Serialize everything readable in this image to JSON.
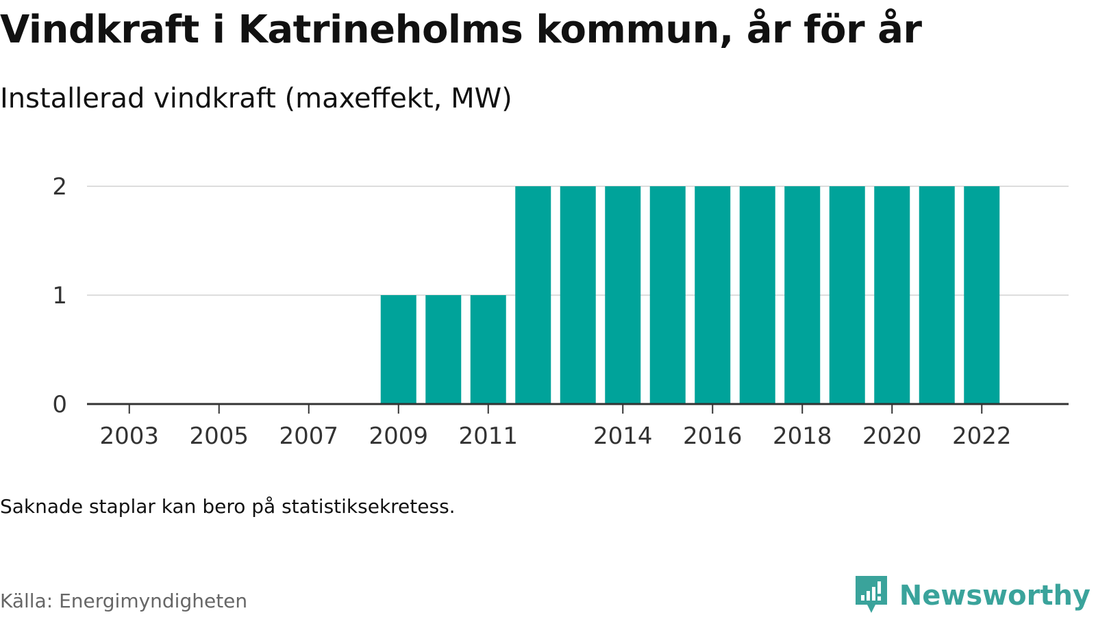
{
  "header": {
    "title": "Vindkraft i Katrineholms kommun, år för år",
    "subtitle": "Installerad vindkraft (maxeffekt, MW)"
  },
  "footer": {
    "note": "Saknade staplar kan bero på statistiksekretess.",
    "source": "Källa: Energimyndigheten",
    "brand": "Newsworthy"
  },
  "colors": {
    "bar": "#00a39a",
    "grid": "#dddddd",
    "axis": "#333333",
    "brand": "#3aa39b"
  },
  "chart_data": {
    "type": "bar",
    "title": "Vindkraft i Katrineholms kommun, år för år",
    "subtitle": "Installerad vindkraft (maxeffekt, MW)",
    "xlabel": "",
    "ylabel": "",
    "x": [
      2002,
      2003,
      2004,
      2005,
      2006,
      2007,
      2008,
      2009,
      2010,
      2011,
      2012,
      2013,
      2014,
      2015,
      2016,
      2017,
      2018,
      2019,
      2020,
      2021,
      2022
    ],
    "values": [
      0,
      0,
      0,
      0,
      0,
      0,
      0,
      1,
      1,
      1,
      2,
      2,
      2,
      2,
      2,
      2,
      2,
      2,
      2,
      2,
      2
    ],
    "x_ticks": [
      2003,
      2005,
      2007,
      2009,
      2011,
      2014,
      2016,
      2018,
      2020,
      2022
    ],
    "y_ticks": [
      0,
      1,
      2
    ],
    "ylim": [
      0,
      2
    ],
    "grid": true,
    "legend": "none"
  }
}
